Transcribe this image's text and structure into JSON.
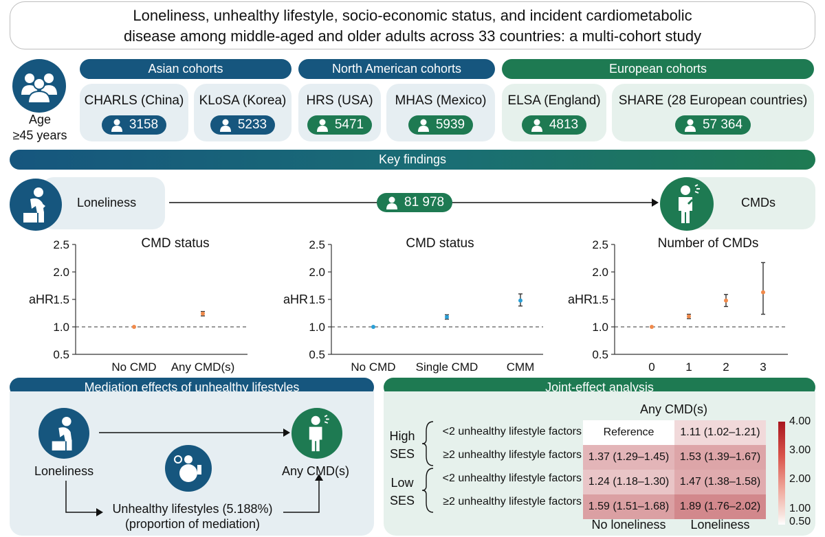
{
  "title": {
    "line1": "Loneliness, unhealthy lifestyle, socio-economic status, and incident cardiometabolic",
    "line2": "disease among middle-aged and older adults across 33 countries: a multi-cohort study"
  },
  "age_label_1": "Age",
  "age_label_2": "≥45 years",
  "regions": [
    {
      "label": "Asian cohorts"
    },
    {
      "label": "North American cohorts"
    },
    {
      "label": "European cohorts"
    }
  ],
  "cohorts": [
    {
      "name": "CHARLS (China)",
      "n": "3158"
    },
    {
      "name": "KLoSA (Korea)",
      "n": "5233"
    },
    {
      "name": "HRS (USA)",
      "n": "5471"
    },
    {
      "name": "MHAS (Mexico)",
      "n": "5939"
    },
    {
      "name": "ELSA (England)",
      "n": "4813"
    },
    {
      "name": "SHARE (28 European countries)",
      "n": "57 364"
    }
  ],
  "key_findings": "Key findings",
  "flow": {
    "exposure": "Loneliness",
    "total_n": "81 978",
    "outcome": "CMDs"
  },
  "colors": {
    "blue": "#16567e",
    "green": "#1e7a52",
    "orange": "#f08a4b",
    "cyan": "#2a9fd6"
  },
  "chart_data": [
    {
      "type": "scatter",
      "title": "CMD status",
      "ylabel": "aHR",
      "ylim": [
        0.5,
        2.5
      ],
      "yticks": [
        "0.5",
        "1.0",
        "1.5",
        "2.0",
        "2.5"
      ],
      "reference_line": 1.0,
      "categories": [
        "No CMD",
        "Any CMD(s)"
      ],
      "points": [
        {
          "x": "No CMD",
          "y": 1.0,
          "lo": 1.0,
          "hi": 1.0
        },
        {
          "x": "Any CMD(s)",
          "y": 1.24,
          "lo": 1.2,
          "hi": 1.28
        }
      ]
    },
    {
      "type": "scatter",
      "title": "CMD status",
      "ylabel": "aHR",
      "ylim": [
        0.5,
        2.5
      ],
      "yticks": [
        "0.5",
        "1.0",
        "1.5",
        "2.0",
        "2.5"
      ],
      "reference_line": 1.0,
      "categories": [
        "No CMD",
        "Single CMD",
        "CMM"
      ],
      "points": [
        {
          "x": "No CMD",
          "y": 1.0,
          "lo": 1.0,
          "hi": 1.0
        },
        {
          "x": "Single CMD",
          "y": 1.18,
          "lo": 1.14,
          "hi": 1.22
        },
        {
          "x": "CMM",
          "y": 1.48,
          "lo": 1.38,
          "hi": 1.6
        }
      ]
    },
    {
      "type": "scatter",
      "title": "Number of CMDs",
      "ylabel": "aHR",
      "ylim": [
        0.5,
        2.5
      ],
      "yticks": [
        "0.5",
        "1.0",
        "1.5",
        "2.0",
        "2.5"
      ],
      "reference_line": 1.0,
      "categories": [
        "0",
        "1",
        "2",
        "3"
      ],
      "points": [
        {
          "x": "0",
          "y": 1.0,
          "lo": 1.0,
          "hi": 1.0
        },
        {
          "x": "1",
          "y": 1.19,
          "lo": 1.15,
          "hi": 1.23
        },
        {
          "x": "2",
          "y": 1.48,
          "lo": 1.37,
          "hi": 1.59
        },
        {
          "x": "3",
          "y": 1.63,
          "lo": 1.23,
          "hi": 2.17
        }
      ]
    },
    {
      "type": "heatmap",
      "title": "Any CMD(s)",
      "columns": [
        "No loneliness",
        "Loneliness"
      ],
      "groups": [
        {
          "label1": "High",
          "label2": "SES",
          "rows": [
            {
              "label": "<2 unhealthy lifestyle factors",
              "cells": [
                {
                  "text": "Reference",
                  "v": 1.0
                },
                {
                  "text": "1.11 (1.02–1.21)",
                  "v": 1.11
                }
              ]
            },
            {
              "label": "≥2 unhealthy lifestyle factors",
              "cells": [
                {
                  "text": "1.37 (1.29–1.45)",
                  "v": 1.37
                },
                {
                  "text": "1.53 (1.39–1.67)",
                  "v": 1.53
                }
              ]
            }
          ]
        },
        {
          "label1": "Low",
          "label2": "SES",
          "rows": [
            {
              "label": "<2 unhealthy lifestyle factors",
              "cells": [
                {
                  "text": "1.24 (1.18–1.30)",
                  "v": 1.24
                },
                {
                  "text": "1.47 (1.38–1.58)",
                  "v": 1.47
                }
              ]
            },
            {
              "label": "≥2 unhealthy lifestyle factors",
              "cells": [
                {
                  "text": "1.59 (1.51–1.68)",
                  "v": 1.59
                },
                {
                  "text": "1.89 (1.76–2.02)",
                  "v": 1.89
                }
              ]
            }
          ]
        }
      ],
      "colorbar": {
        "ticks": [
          "4.00",
          "3.00",
          "2.00",
          "1.00",
          "0.50"
        ],
        "min": 0.5,
        "max": 4.0
      }
    }
  ],
  "mediation": {
    "header": "Mediation effects of unhealthy lifestyles",
    "exposure": "Loneliness",
    "outcome": "Any CMD(s)",
    "mediator_line1": "Unhealthy lifestyles (5.188%)",
    "mediator_line2": "(proportion of mediation)"
  },
  "joint": {
    "header": "Joint-effect analysis"
  }
}
